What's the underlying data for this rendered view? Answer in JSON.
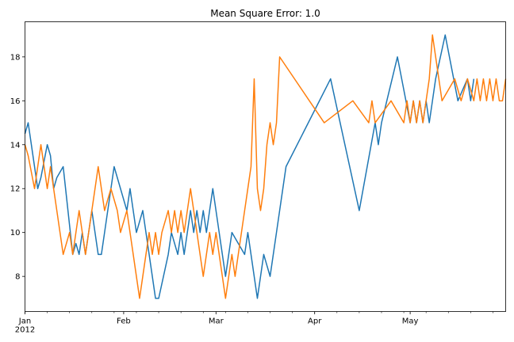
{
  "chart_data": {
    "type": "line",
    "title": "Mean Square Error: 1.0",
    "xlabel": "",
    "ylabel": "",
    "xlim": [
      "2012-01-01",
      "2012-05-31"
    ],
    "ylim": [
      6.4,
      19.6
    ],
    "grid": false,
    "x_ticks": [
      {
        "date": "2012-01-01",
        "label": "Jan",
        "sublabel": "2012"
      },
      {
        "date": "2012-02-01",
        "label": "Feb",
        "sublabel": ""
      },
      {
        "date": "2012-03-01",
        "label": "Mar",
        "sublabel": ""
      },
      {
        "date": "2012-04-01",
        "label": "Apr",
        "sublabel": ""
      },
      {
        "date": "2012-05-01",
        "label": "May",
        "sublabel": ""
      }
    ],
    "y_ticks": [
      8,
      10,
      12,
      14,
      16,
      18
    ],
    "series": [
      {
        "color": "#1f77b4",
        "x": [
          "2012-01-01",
          "2012-01-02",
          "2012-01-03",
          "2012-01-05",
          "2012-01-06",
          "2012-01-08",
          "2012-01-09",
          "2012-01-10",
          "2012-01-11",
          "2012-01-13",
          "2012-01-16",
          "2012-01-17",
          "2012-01-18",
          "2012-01-19",
          "2012-01-20",
          "2012-01-21",
          "2012-01-22",
          "2012-01-23",
          "2012-01-24",
          "2012-01-25",
          "2012-01-26",
          "2012-01-27",
          "2012-01-29",
          "2012-02-02",
          "2012-02-03",
          "2012-02-04",
          "2012-02-05",
          "2012-02-06",
          "2012-02-07",
          "2012-02-08",
          "2012-02-09",
          "2012-02-10",
          "2012-02-11",
          "2012-02-12",
          "2012-02-15",
          "2012-02-16",
          "2012-02-18",
          "2012-02-19",
          "2012-02-20",
          "2012-02-21",
          "2012-02-22",
          "2012-02-23",
          "2012-02-24",
          "2012-02-25",
          "2012-02-26",
          "2012-02-27",
          "2012-02-28",
          "2012-02-29",
          "2012-03-01",
          "2012-03-02",
          "2012-03-03",
          "2012-03-04",
          "2012-03-05",
          "2012-03-06",
          "2012-03-10",
          "2012-03-11",
          "2012-03-12",
          "2012-03-13",
          "2012-03-14",
          "2012-03-15",
          "2012-03-16",
          "2012-03-18",
          "2012-03-19",
          "2012-03-20",
          "2012-03-21",
          "2012-03-22",
          "2012-03-23",
          "2012-04-06",
          "2012-04-15",
          "2012-04-20",
          "2012-04-21",
          "2012-04-22",
          "2012-04-27",
          "2012-05-01",
          "2012-05-02",
          "2012-05-03",
          "2012-05-04",
          "2012-05-05",
          "2012-05-06",
          "2012-05-07",
          "2012-05-08",
          "2012-05-09",
          "2012-05-12",
          "2012-05-16",
          "2012-05-19",
          "2012-05-20",
          "2012-05-21"
        ],
        "y": [
          14.5,
          15,
          14,
          12,
          12.5,
          14,
          13.5,
          12,
          12.5,
          13,
          9,
          9.5,
          9,
          10,
          9,
          10,
          11,
          10,
          9,
          9,
          10,
          11,
          13,
          11,
          12,
          11,
          10,
          10.5,
          11,
          10,
          9,
          8,
          7,
          7,
          9,
          10,
          9,
          10,
          9,
          10,
          11,
          10,
          11,
          10,
          11,
          10,
          11,
          12,
          11,
          10,
          9,
          8,
          9,
          10,
          9,
          10,
          9,
          8,
          7,
          8,
          9,
          8,
          9,
          10,
          11,
          12,
          13,
          17,
          11,
          15,
          14,
          15,
          18,
          15,
          16,
          15,
          16,
          15,
          16,
          15,
          16,
          17,
          19,
          16,
          17,
          16,
          17
        ]
      },
      {
        "color": "#ff7f0e",
        "x": [
          "2012-01-01",
          "2012-01-02",
          "2012-01-04",
          "2012-01-06",
          "2012-01-07",
          "2012-01-08",
          "2012-01-09",
          "2012-01-10",
          "2012-01-11",
          "2012-01-12",
          "2012-01-13",
          "2012-01-15",
          "2012-01-16",
          "2012-01-17",
          "2012-01-18",
          "2012-01-19",
          "2012-01-20",
          "2012-01-21",
          "2012-01-22",
          "2012-01-24",
          "2012-01-26",
          "2012-01-28",
          "2012-01-30",
          "2012-01-31",
          "2012-02-01",
          "2012-02-02",
          "2012-02-03",
          "2012-02-04",
          "2012-02-05",
          "2012-02-06",
          "2012-02-07",
          "2012-02-08",
          "2012-02-09",
          "2012-02-10",
          "2012-02-11",
          "2012-02-12",
          "2012-02-13",
          "2012-02-15",
          "2012-02-16",
          "2012-02-17",
          "2012-02-18",
          "2012-02-19",
          "2012-02-20",
          "2012-02-21",
          "2012-02-22",
          "2012-02-23",
          "2012-02-24",
          "2012-02-25",
          "2012-02-26",
          "2012-02-27",
          "2012-02-28",
          "2012-02-29",
          "2012-03-01",
          "2012-03-02",
          "2012-03-03",
          "2012-03-04",
          "2012-03-05",
          "2012-03-06",
          "2012-03-07",
          "2012-03-08",
          "2012-03-09",
          "2012-03-10",
          "2012-03-11",
          "2012-03-12",
          "2012-03-13",
          "2012-03-14",
          "2012-03-15",
          "2012-03-16",
          "2012-03-17",
          "2012-03-18",
          "2012-03-19",
          "2012-03-20",
          "2012-03-21",
          "2012-04-04",
          "2012-04-13",
          "2012-04-18",
          "2012-04-19",
          "2012-04-20",
          "2012-04-25",
          "2012-04-29",
          "2012-04-30",
          "2012-05-01",
          "2012-05-02",
          "2012-05-03",
          "2012-05-04",
          "2012-05-05",
          "2012-05-06",
          "2012-05-07",
          "2012-05-08",
          "2012-05-11",
          "2012-05-15",
          "2012-05-17",
          "2012-05-19",
          "2012-05-21",
          "2012-05-22",
          "2012-05-23",
          "2012-05-24",
          "2012-05-25",
          "2012-05-26",
          "2012-05-27",
          "2012-05-28",
          "2012-05-29",
          "2012-05-30",
          "2012-05-31"
        ],
        "y": [
          14,
          13.5,
          12,
          14,
          13,
          12,
          13,
          12,
          11,
          10,
          9,
          10,
          9,
          10,
          11,
          10,
          9,
          10,
          11,
          13,
          11,
          12,
          11,
          10,
          10.5,
          11,
          10,
          9,
          8,
          7,
          8,
          9,
          10,
          9,
          10,
          9,
          10,
          11,
          10,
          11,
          10,
          11,
          10,
          11,
          12,
          11,
          10,
          9,
          8,
          9,
          10,
          9,
          10,
          9,
          8,
          7,
          8,
          9,
          8,
          9,
          10,
          11,
          12,
          13,
          17,
          12,
          11,
          12,
          14,
          15,
          14,
          15,
          18,
          15,
          16,
          15,
          16,
          15,
          16,
          15,
          16,
          15,
          16,
          15,
          16,
          15,
          16,
          17,
          19,
          16,
          17,
          16,
          17,
          16,
          17,
          16,
          17,
          16,
          17,
          16,
          17,
          16,
          16,
          17
        ]
      }
    ]
  }
}
